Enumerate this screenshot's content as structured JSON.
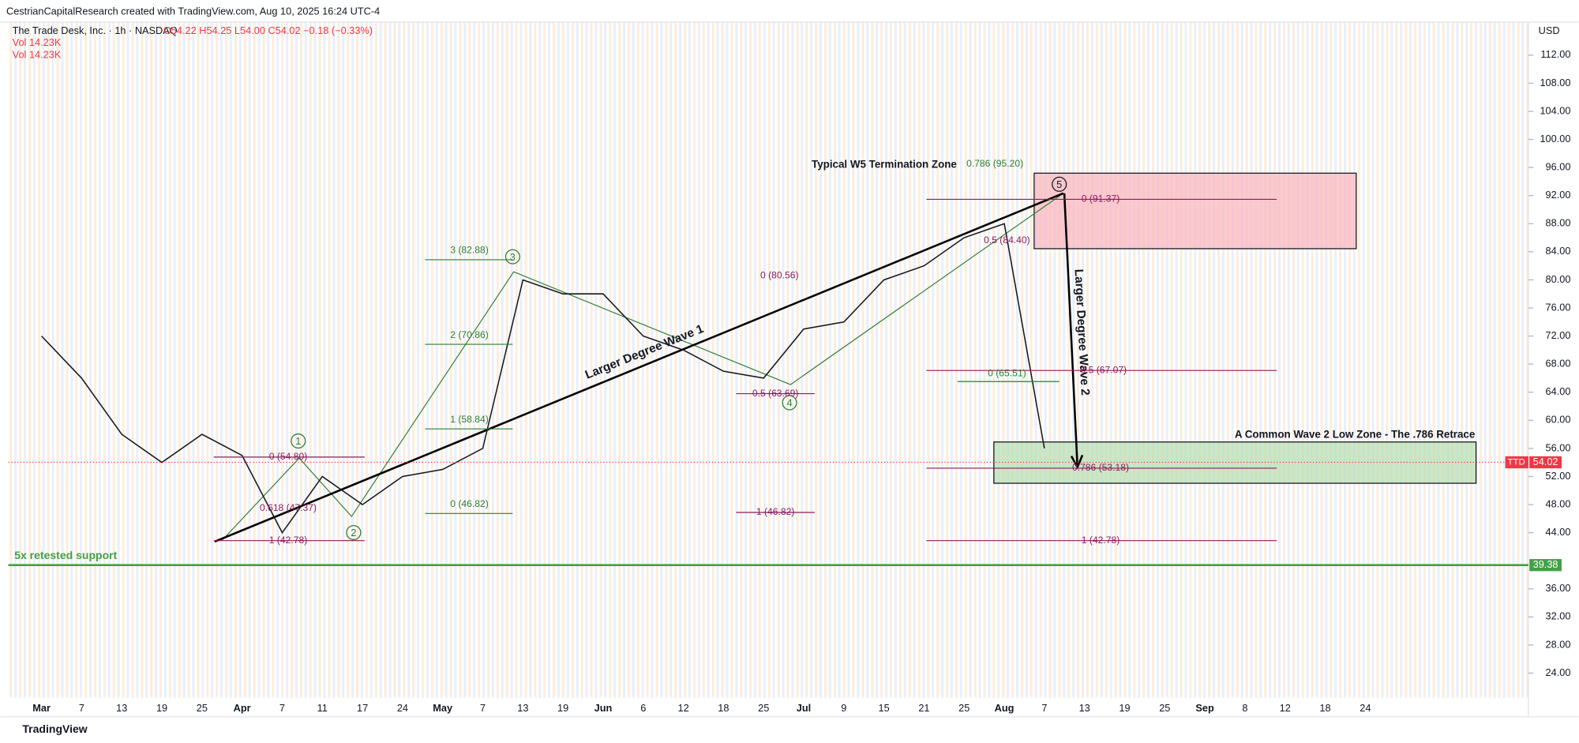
{
  "header": {
    "credit": "CestrianCapitalResearch created with TradingView.com, Aug 10, 2025 16:24 UTC-4",
    "instrument": "The Trade Desk, Inc. · 1h · NASDAQ",
    "ohlc": "O54.22 H54.25 L54.00 C54.02 −0.18 (−0.33%)",
    "volume": [
      "Vol 14.23K",
      "Vol 14.23K"
    ],
    "currency": "USD",
    "footer": "TradingView"
  },
  "chart_data": {
    "type": "line",
    "color": "#131722",
    "x": [
      "Mar",
      "7",
      "13",
      "19",
      "25",
      "Apr",
      "7",
      "11",
      "17",
      "24",
      "May",
      "7",
      "13",
      "19",
      "Jun",
      "6",
      "12",
      "18",
      "25",
      "Jul",
      "9",
      "15",
      "21",
      "25",
      "Aug",
      "7",
      "13",
      "19",
      "25",
      "Sep",
      "8",
      "12",
      "18",
      "24"
    ],
    "values": [
      72,
      66,
      58,
      54,
      58,
      55,
      44,
      52,
      48,
      52,
      53,
      56,
      80,
      78,
      78,
      72,
      70,
      67,
      66,
      73,
      74,
      80,
      82,
      86,
      88,
      56,
      null,
      null,
      null,
      null,
      null,
      null,
      null,
      null
    ],
    "ylim": [
      20.5,
      116.7
    ],
    "yticks": [
      {
        "value": 24,
        "label": "24.00"
      },
      {
        "value": 28,
        "label": "28.00"
      },
      {
        "value": 32,
        "label": "32.00"
      },
      {
        "value": 36,
        "label": "36.00"
      },
      {
        "value": 44,
        "label": "44.00"
      },
      {
        "value": 48,
        "label": "48.00"
      },
      {
        "value": 52,
        "label": "52.00"
      },
      {
        "value": 56,
        "label": "56.00"
      },
      {
        "value": 60,
        "label": "60.00"
      },
      {
        "value": 64,
        "label": "64.00"
      },
      {
        "value": 68,
        "label": "68.00"
      },
      {
        "value": 72,
        "label": "72.00"
      },
      {
        "value": 76,
        "label": "76.00"
      },
      {
        "value": 80,
        "label": "80.00"
      },
      {
        "value": 84,
        "label": "84.00"
      },
      {
        "value": 88,
        "label": "88.00"
      },
      {
        "value": 92,
        "label": "92.00"
      },
      {
        "value": 96,
        "label": "96.00"
      },
      {
        "value": 100,
        "label": "100.00"
      },
      {
        "value": 104,
        "label": "104.00"
      },
      {
        "value": 108,
        "label": "108.00"
      },
      {
        "value": 112,
        "label": "112.00"
      }
    ],
    "last_price": {
      "symbol": "TTD",
      "value": 54.02
    },
    "support": {
      "label": "5x retested support",
      "value": 39.38
    },
    "waves": [
      "1",
      "2",
      "3",
      "4",
      "5"
    ],
    "annotations": [
      "Typical W5 Termination Zone",
      "A Common Wave 2 Low Zone - The .786 Retrace",
      "Larger Degree Wave 1",
      "Larger Degree Wave 2"
    ],
    "fib_levels": [
      "0.786 (95.20)",
      "0 (91.37)",
      "0.5 (84.40)",
      "3 (82.88)",
      "0 (80.56)",
      "2 (70.86)",
      "0.5 (67.07)",
      "0 (65.51)",
      "0.5 (63.69)",
      "1 (58.84)",
      "0 (54.80)",
      "0.786 (53.18)",
      "0.618 (47.37)",
      "0 (46.82)",
      "1 (46.82)",
      "1 (42.78)",
      "1 (42.78)"
    ]
  }
}
